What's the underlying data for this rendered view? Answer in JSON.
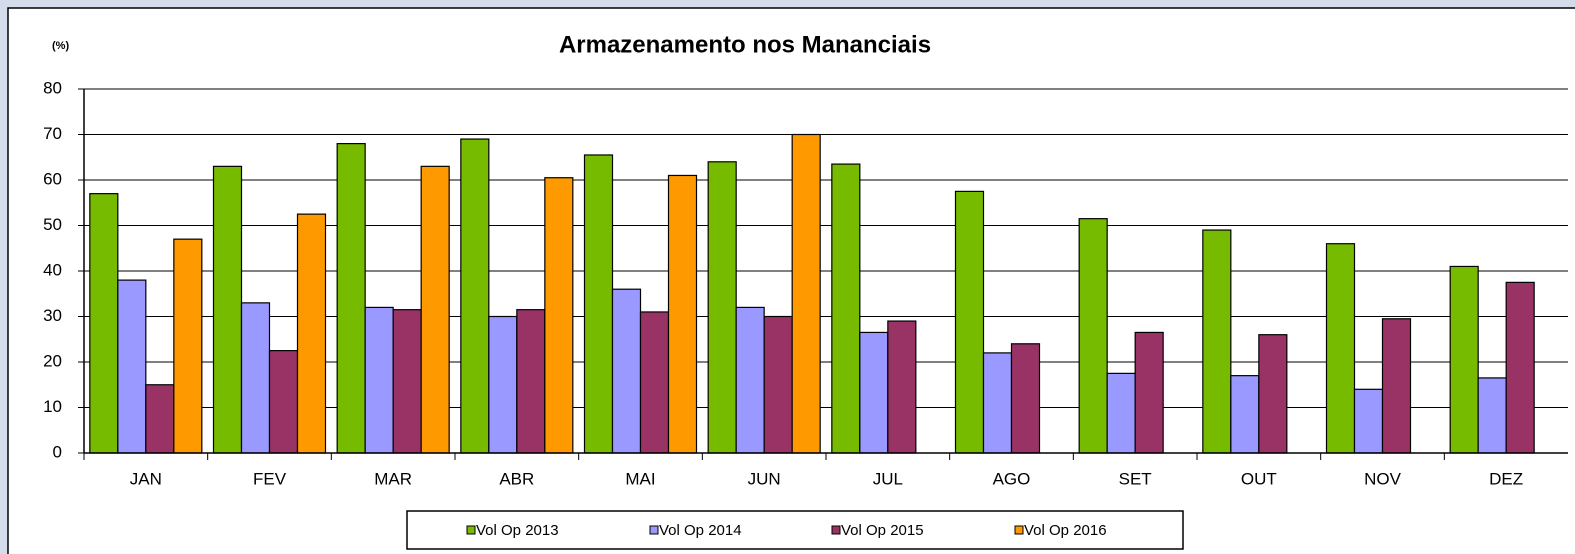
{
  "chart_data": {
    "type": "bar",
    "title": "Armazenamento nos Mananciais",
    "y_label": "(%)",
    "categories": [
      "JAN",
      "FEV",
      "MAR",
      "ABR",
      "MAI",
      "JUN",
      "JUL",
      "AGO",
      "SET",
      "OUT",
      "NOV",
      "DEZ"
    ],
    "series": [
      {
        "name": "Vol Op 2013",
        "color": "#77bb00",
        "values": [
          57,
          63,
          68,
          69,
          65.5,
          64,
          63.5,
          57.5,
          51.5,
          49,
          46,
          41
        ]
      },
      {
        "name": "Vol Op 2014",
        "color": "#9999ff",
        "values": [
          38,
          33,
          32,
          30,
          36,
          32,
          26.5,
          22,
          17.5,
          17,
          14,
          16.5
        ]
      },
      {
        "name": "Vol Op 2015",
        "color": "#993366",
        "values": [
          15,
          22.5,
          31.5,
          31.5,
          31,
          30,
          29,
          24,
          26.5,
          26,
          29.5,
          37.5
        ]
      },
      {
        "name": "Vol Op 2016",
        "color": "#ff9900",
        "values": [
          47,
          52.5,
          63,
          60.5,
          61,
          70,
          null,
          null,
          null,
          null,
          null,
          null
        ]
      }
    ],
    "ylim": [
      0,
      80
    ],
    "yticks": [
      0,
      10,
      20,
      30,
      40,
      50,
      60,
      70,
      80
    ],
    "grid": true,
    "legend": "bottom"
  }
}
